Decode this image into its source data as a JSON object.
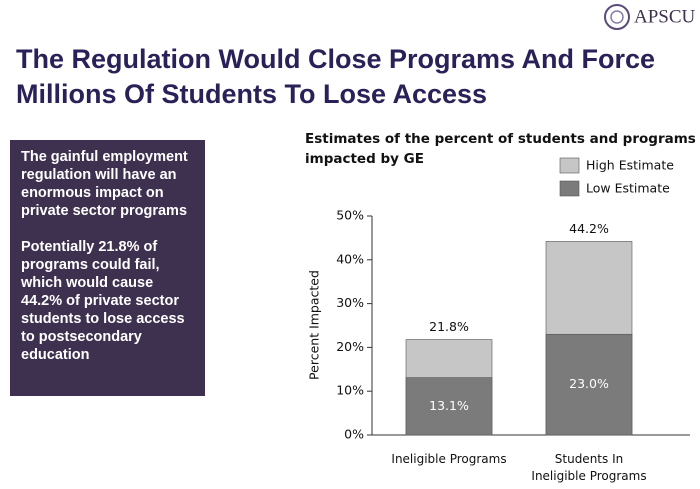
{
  "logo": "APSCU",
  "title": [
    "The Regulation Would Close Programs And Force",
    "Millions Of Students To Lose Access"
  ],
  "sidebar": [
    "The gainful employment regulation will have an enormous impact on private sector programs",
    "Potentially 21.8% of programs could fail, which would cause 44.2% of private sector students to lose access to postsecondary education"
  ],
  "chart_data": {
    "type": "bar",
    "title": [
      "Estimates of the percent of students and programs",
      "impacted by GE"
    ],
    "y_label": "Percent Impacted",
    "categories": [
      "Ineligible Programs",
      "Students In Ineligible Programs"
    ],
    "series": [
      {
        "name": "High Estimate",
        "color": "#c6c6c6",
        "values": [
          21.8,
          44.2
        ],
        "value_labels": [
          "21.8%",
          "44.2%"
        ]
      },
      {
        "name": "Low Estimate",
        "color": "#7b7b7b",
        "values": [
          13.1,
          23.0
        ],
        "value_labels": [
          "13.1%",
          "23.0%"
        ]
      }
    ],
    "ylim": [
      0,
      50
    ],
    "yticks": [
      {
        "value": 0,
        "label": "0%"
      },
      {
        "value": 10,
        "label": "10%"
      },
      {
        "value": 20,
        "label": "20%"
      },
      {
        "value": 30,
        "label": "30%"
      },
      {
        "value": 40,
        "label": "40%"
      },
      {
        "value": 50,
        "label": "50%"
      }
    ],
    "legend": "top-right",
    "grid": false
  }
}
